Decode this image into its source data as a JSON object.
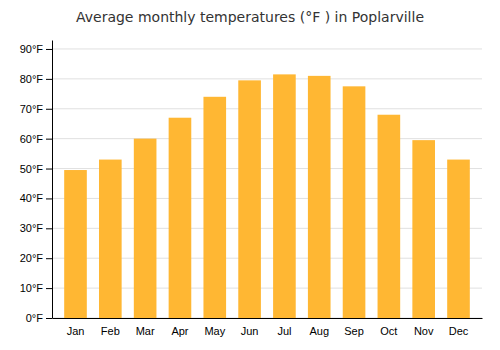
{
  "chart_data": {
    "type": "bar",
    "title": "Average monthly temperatures (°F ) in Poplarville",
    "categories": [
      "Jan",
      "Feb",
      "Mar",
      "Apr",
      "May",
      "Jun",
      "Jul",
      "Aug",
      "Sep",
      "Oct",
      "Nov",
      "Dec"
    ],
    "values": [
      49.5,
      53.0,
      60.0,
      67.0,
      74.0,
      79.5,
      81.5,
      81.0,
      77.5,
      68.0,
      59.5,
      53.0
    ],
    "color": "#FFB733",
    "ylim": [
      0,
      93
    ],
    "yticks": [
      {
        "value": 0,
        "label": "0°F"
      },
      {
        "value": 10,
        "label": "10°F"
      },
      {
        "value": 20,
        "label": "20°F"
      },
      {
        "value": 30,
        "label": "30°F"
      },
      {
        "value": 40,
        "label": "40°F"
      },
      {
        "value": 50,
        "label": "50°F"
      },
      {
        "value": 60,
        "label": "60°F"
      },
      {
        "value": 70,
        "label": "70°F"
      },
      {
        "value": 80,
        "label": "80°F"
      },
      {
        "value": 90,
        "label": "90°F"
      }
    ],
    "grid": true
  }
}
